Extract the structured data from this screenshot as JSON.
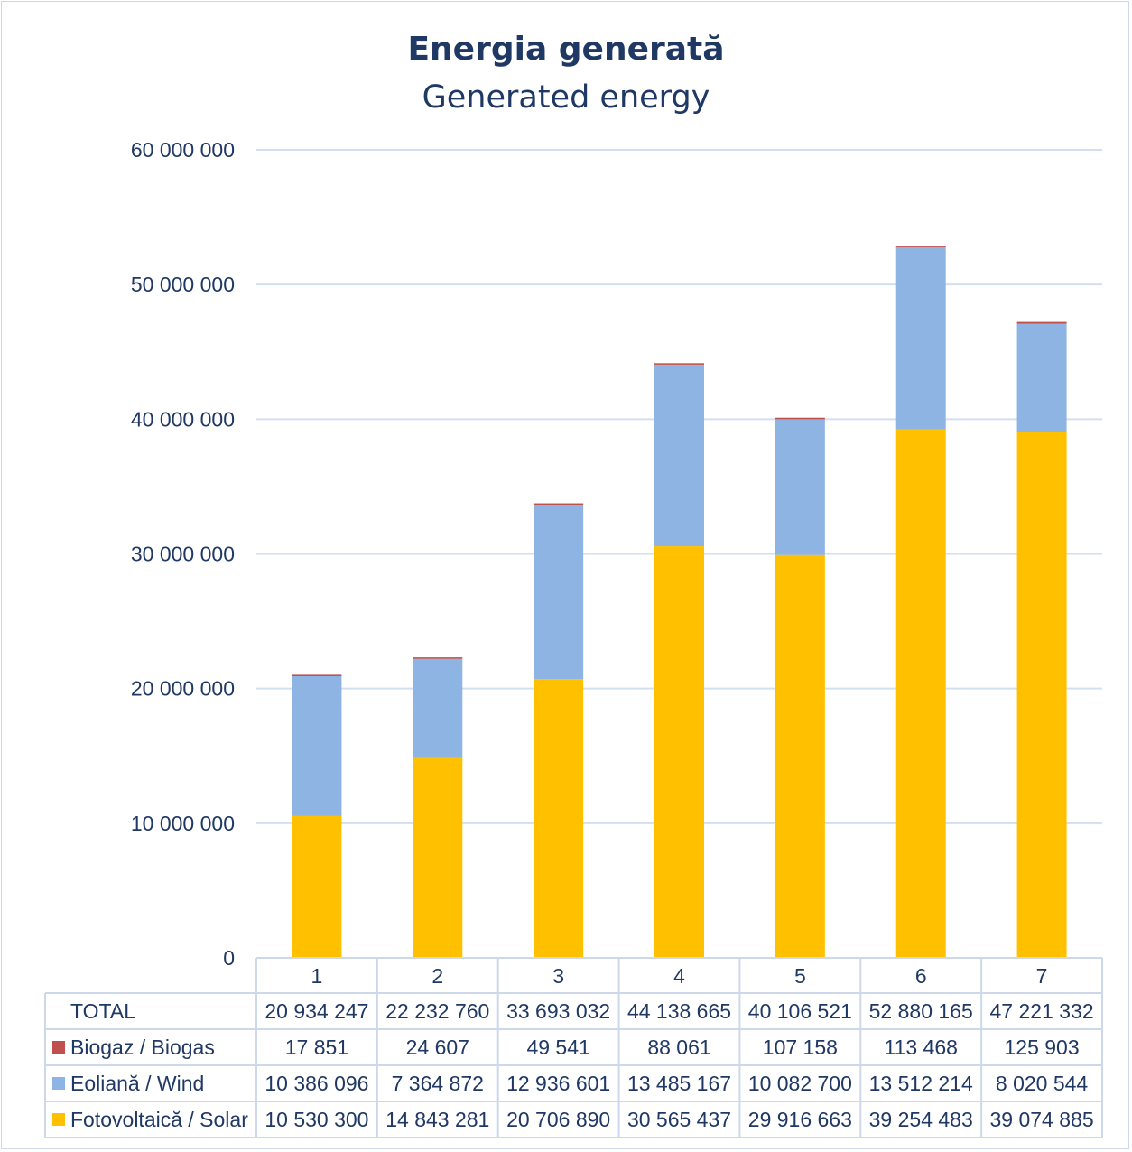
{
  "chart_data": {
    "type": "bar",
    "stacked": true,
    "title": "Energia generată",
    "subtitle": "Generated energy",
    "categories": [
      "1",
      "2",
      "3",
      "4",
      "5",
      "6",
      "7"
    ],
    "ylim": [
      0,
      60000000
    ],
    "yticks": [
      "0",
      "10 000 000",
      "20 000 000",
      "30 000 000",
      "40 000 000",
      "50 000 000",
      "60 000 000"
    ],
    "grid": true,
    "series": [
      {
        "name": "Fotovoltaică / Solar",
        "color": "#ffc000",
        "values": [
          10530300,
          14843281,
          20706890,
          30565437,
          29916663,
          39254483,
          39074885
        ],
        "labels": [
          "10 530 300",
          "14 843 281",
          "20 706 890",
          "30 565 437",
          "29 916 663",
          "39 254 483",
          "39 074 885"
        ]
      },
      {
        "name": "Eoliană / Wind",
        "color": "#8eb4e3",
        "values": [
          10386096,
          7364872,
          12936601,
          13485167,
          10082700,
          13512214,
          8020544
        ],
        "labels": [
          "10 386 096",
          "7 364 872",
          "12 936 601",
          "13 485 167",
          "10 082 700",
          "13 512 214",
          "8 020 544"
        ]
      },
      {
        "name": "Biogaz / Biogas",
        "color": "#c0504d",
        "values": [
          17851,
          24607,
          49541,
          88061,
          107158,
          113468,
          125903
        ],
        "labels": [
          "17 851",
          "24 607",
          "49 541",
          "88 061",
          "107 158",
          "113 468",
          "125 903"
        ]
      }
    ],
    "total": {
      "name": "TOTAL",
      "values": [
        20934247,
        22232760,
        33693032,
        44138665,
        40106521,
        52880165,
        47221332
      ],
      "labels": [
        "20 934 247",
        "22 232 760",
        "33 693 032",
        "44 138 665",
        "40 106 521",
        "52 880 165",
        "47 221 332"
      ]
    }
  }
}
